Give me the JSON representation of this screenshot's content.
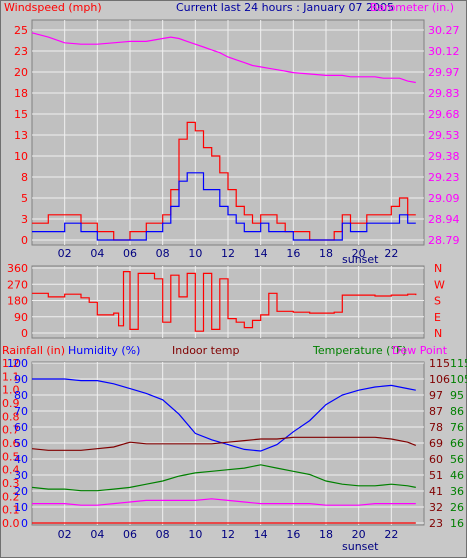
{
  "header": {
    "left_label": "Windspeed (mph)",
    "center_label": "Current last 24 hours : January 07 2005",
    "right_label": "Barometer (in.)"
  },
  "colors": {
    "background": "#c8c8c8",
    "plot_bg": "#c0c0c0",
    "grid": "#f0f0f0",
    "wind": "#ff0000",
    "gust": "#0000ff",
    "barometer": "#ff00ff",
    "direction": "#ff0000",
    "humidity": "#0000ff",
    "indoor": "#800000",
    "temperature": "#008000",
    "dewpoint": "#ff00ff",
    "rain": "#ff0000"
  },
  "chart_data": [
    {
      "type": "line",
      "name": "wind-barometer",
      "x_ticks": [
        "02",
        "04",
        "06",
        "08",
        "10",
        "12",
        "14",
        "16",
        "18",
        "20",
        "22"
      ],
      "x_marker": "sunset",
      "y_left_ticks": [
        "0",
        "3",
        "5",
        "8",
        "10",
        "13",
        "15",
        "18",
        "20",
        "23",
        "25"
      ],
      "y_left_range": [
        0,
        25
      ],
      "y_right_ticks": [
        "28.79",
        "28.94",
        "29.09",
        "29.23",
        "29.38",
        "29.53",
        "29.68",
        "29.83",
        "29.97",
        "30.12",
        "30.27"
      ],
      "y_right_range": [
        28.79,
        30.27
      ],
      "grid": true,
      "x_hours": [
        0,
        1,
        2,
        3,
        4,
        5,
        6,
        7,
        8,
        8.5,
        9,
        9.5,
        10,
        10.5,
        11,
        11.5,
        12,
        12.5,
        13,
        13.5,
        14,
        14.5,
        15,
        15.5,
        16,
        17,
        18,
        18.5,
        19,
        19.5,
        20,
        20.5,
        21,
        21.5,
        22,
        22.5,
        23,
        23.5
      ],
      "series": [
        {
          "values": [
            2,
            3,
            3,
            2,
            1,
            0,
            1,
            2,
            3,
            6,
            12,
            14,
            13,
            11,
            10,
            8,
            6,
            4,
            3,
            2,
            3,
            3,
            2,
            1,
            1,
            0,
            0,
            1,
            3,
            2,
            2,
            3,
            3,
            3,
            4,
            5,
            3,
            3
          ]
        },
        {
          "values": [
            1,
            1,
            2,
            1,
            0,
            0,
            0,
            1,
            2,
            4,
            7,
            8,
            8,
            6,
            6,
            4,
            3,
            2,
            1,
            1,
            2,
            1,
            1,
            1,
            0,
            0,
            0,
            0,
            2,
            1,
            1,
            2,
            2,
            2,
            2,
            3,
            2,
            2
          ]
        },
        {
          "values": [
            30.25,
            30.22,
            30.18,
            30.17,
            30.17,
            30.18,
            30.19,
            30.19,
            30.21,
            30.22,
            30.21,
            30.19,
            30.17,
            30.15,
            30.13,
            30.11,
            30.08,
            30.06,
            30.04,
            30.02,
            30.01,
            30.0,
            29.99,
            29.98,
            29.97,
            29.96,
            29.95,
            29.95,
            29.95,
            29.94,
            29.94,
            29.94,
            29.94,
            29.93,
            29.93,
            29.93,
            29.91,
            29.9
          ]
        }
      ]
    },
    {
      "type": "line",
      "name": "wind-direction",
      "y_left_ticks": [
        "0",
        "90",
        "180",
        "270",
        "360"
      ],
      "y_left_range": [
        0,
        360
      ],
      "y_right_ticks": [
        "N",
        "E",
        "S",
        "W",
        "N"
      ],
      "x_hours": [
        0,
        1,
        2,
        3,
        3.5,
        4,
        4.5,
        5,
        5.3,
        5.6,
        6,
        6.5,
        7,
        7.5,
        8,
        8.5,
        9,
        9.5,
        10,
        10.5,
        11,
        11.5,
        12,
        12.5,
        13,
        13.5,
        14,
        14.5,
        15,
        16,
        17,
        18,
        18.5,
        19,
        20,
        21,
        22,
        23,
        23.5
      ],
      "series": [
        {
          "values": [
            220,
            200,
            215,
            195,
            170,
            100,
            100,
            110,
            40,
            340,
            20,
            330,
            330,
            300,
            60,
            320,
            200,
            330,
            10,
            330,
            20,
            300,
            80,
            60,
            30,
            70,
            100,
            220,
            120,
            115,
            110,
            110,
            115,
            210,
            210,
            205,
            210,
            215,
            210
          ]
        }
      ]
    },
    {
      "type": "line",
      "name": "humidity-temperature",
      "header_labels": [
        "Rainfall (in)",
        "Humidity (%)",
        "Indoor temp",
        "Temperature (°F)",
        "Dew Point"
      ],
      "y_left_ticks": [
        "0.0",
        "0.1",
        "0.2",
        "0.3",
        "0.4",
        "0.5",
        "0.6",
        "0.7",
        "0.8",
        "0.9",
        "1.0",
        "1.1",
        "1.2"
      ],
      "y_left_range": [
        0,
        1.2
      ],
      "y_humidity_ticks": [
        "0",
        "10",
        "20",
        "30",
        "40",
        "50",
        "60",
        "70",
        "80",
        "90",
        "100"
      ],
      "y_humidity_range": [
        0,
        100
      ],
      "y_temp_ticks_outer": [
        "16",
        "26",
        "36",
        "46",
        "56",
        "66",
        "76",
        "86",
        "95",
        "105",
        "115"
      ],
      "y_temp_ticks_inner": [
        "23",
        "32",
        "41",
        "51",
        "60",
        "69",
        "78",
        "87",
        "97",
        "106",
        "115"
      ],
      "y_temp_range": [
        16,
        115
      ],
      "x_ticks": [
        "02",
        "04",
        "06",
        "08",
        "10",
        "12",
        "14",
        "16",
        "18",
        "20",
        "22"
      ],
      "x_marker": "sunset",
      "grid": true,
      "x_hours": [
        0,
        1,
        2,
        3,
        4,
        5,
        6,
        7,
        8,
        9,
        10,
        11,
        12,
        13,
        14,
        15,
        16,
        17,
        18,
        19,
        20,
        21,
        22,
        23,
        23.5
      ],
      "series": [
        {
          "values": [
            0,
            0,
            0,
            0,
            0,
            0,
            0,
            0,
            0,
            0,
            0,
            0,
            0,
            0,
            0,
            0,
            0,
            0,
            0,
            0,
            0,
            0,
            0,
            0,
            0
          ]
        },
        {
          "values": [
            90,
            90,
            90,
            89,
            89,
            87,
            84,
            81,
            77,
            68,
            56,
            52,
            49,
            46,
            45,
            49,
            57,
            64,
            74,
            80,
            83,
            85,
            86,
            84,
            83
          ]
        },
        {
          "values": [
            62,
            61,
            61,
            61,
            62,
            63,
            66,
            65,
            65,
            65,
            65,
            65,
            66,
            67,
            68,
            68,
            69,
            69,
            69,
            69,
            69,
            69,
            68,
            66,
            64
          ]
        },
        {
          "values": [
            38,
            37,
            37,
            36,
            36,
            37,
            38,
            40,
            42,
            45,
            47,
            48,
            49,
            50,
            52,
            50,
            48,
            46,
            42,
            40,
            39,
            39,
            40,
            39,
            38
          ]
        },
        {
          "values": [
            28,
            28,
            28,
            27,
            27,
            28,
            29,
            30,
            30,
            30,
            30,
            31,
            30,
            29,
            28,
            28,
            28,
            28,
            27,
            27,
            27,
            28,
            28,
            28,
            28
          ]
        }
      ]
    }
  ]
}
